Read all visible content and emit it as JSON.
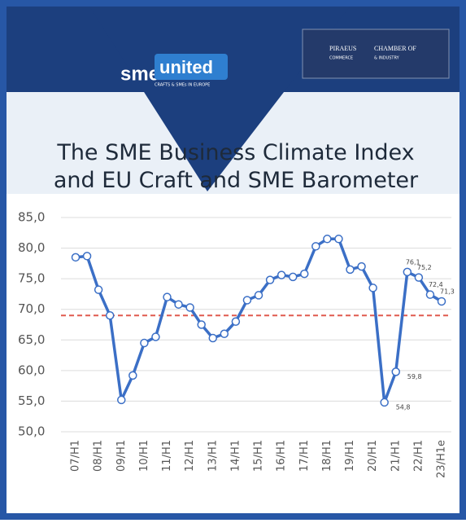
{
  "header": {
    "logo_left": "sme",
    "logo_left_accent": "united",
    "logo_left_tagline": "CRAFTS & SMEs IN EUROPE",
    "logo_right_1": "PIRAEUS",
    "logo_right_2": "CHAMBER OF",
    "logo_right_3": "COMMERCE",
    "logo_right_4": "& INDUSTRY"
  },
  "chart_data": {
    "type": "line",
    "title": "The SME Business Climate Index and EU Craft and SME Barometer",
    "categories": [
      "07/H1",
      null,
      "08/H1",
      null,
      "09/H1",
      null,
      "10/H1",
      null,
      "11/H1",
      null,
      "12/H1",
      null,
      "13/H1",
      null,
      "14/H1",
      null,
      "15/H1",
      null,
      "16/H1",
      null,
      "17/H1",
      null,
      "18/H1",
      null,
      "19/H1",
      null,
      "20/H1",
      null,
      "21/H1",
      null,
      "22/H1",
      null,
      "23/H1e"
    ],
    "values": [
      78.5,
      78.7,
      73.2,
      69.0,
      55.2,
      59.2,
      64.5,
      65.5,
      72.0,
      70.8,
      70.3,
      67.5,
      65.3,
      66.0,
      68.0,
      71.5,
      72.3,
      74.8,
      75.6,
      75.3,
      75.8,
      80.3,
      81.5,
      81.5,
      76.5,
      77.0,
      73.5,
      54.8,
      59.8,
      76.1,
      75.2,
      72.4,
      71.3
    ],
    "value_labels": [
      null,
      null,
      null,
      null,
      null,
      null,
      null,
      null,
      null,
      null,
      null,
      null,
      null,
      null,
      null,
      null,
      null,
      null,
      null,
      null,
      null,
      null,
      null,
      null,
      null,
      null,
      null,
      "54,8",
      "59,8",
      "76,1",
      "75,2",
      "72,4",
      "71,3"
    ],
    "color": "#3b6fc6",
    "reference_line": {
      "value": 69,
      "color": "#e05a4f"
    },
    "ylim": [
      50,
      85
    ],
    "yticks": [
      {
        "value": 50,
        "label": "50,0"
      },
      {
        "value": 55,
        "label": "55,0"
      },
      {
        "value": 60,
        "label": "60,0"
      },
      {
        "value": 65,
        "label": "65,0"
      },
      {
        "value": 70,
        "label": "70,0"
      },
      {
        "value": 75,
        "label": "75,0"
      },
      {
        "value": 80,
        "label": "80,0"
      },
      {
        "value": 85,
        "label": "85,0"
      }
    ],
    "grid": true
  }
}
